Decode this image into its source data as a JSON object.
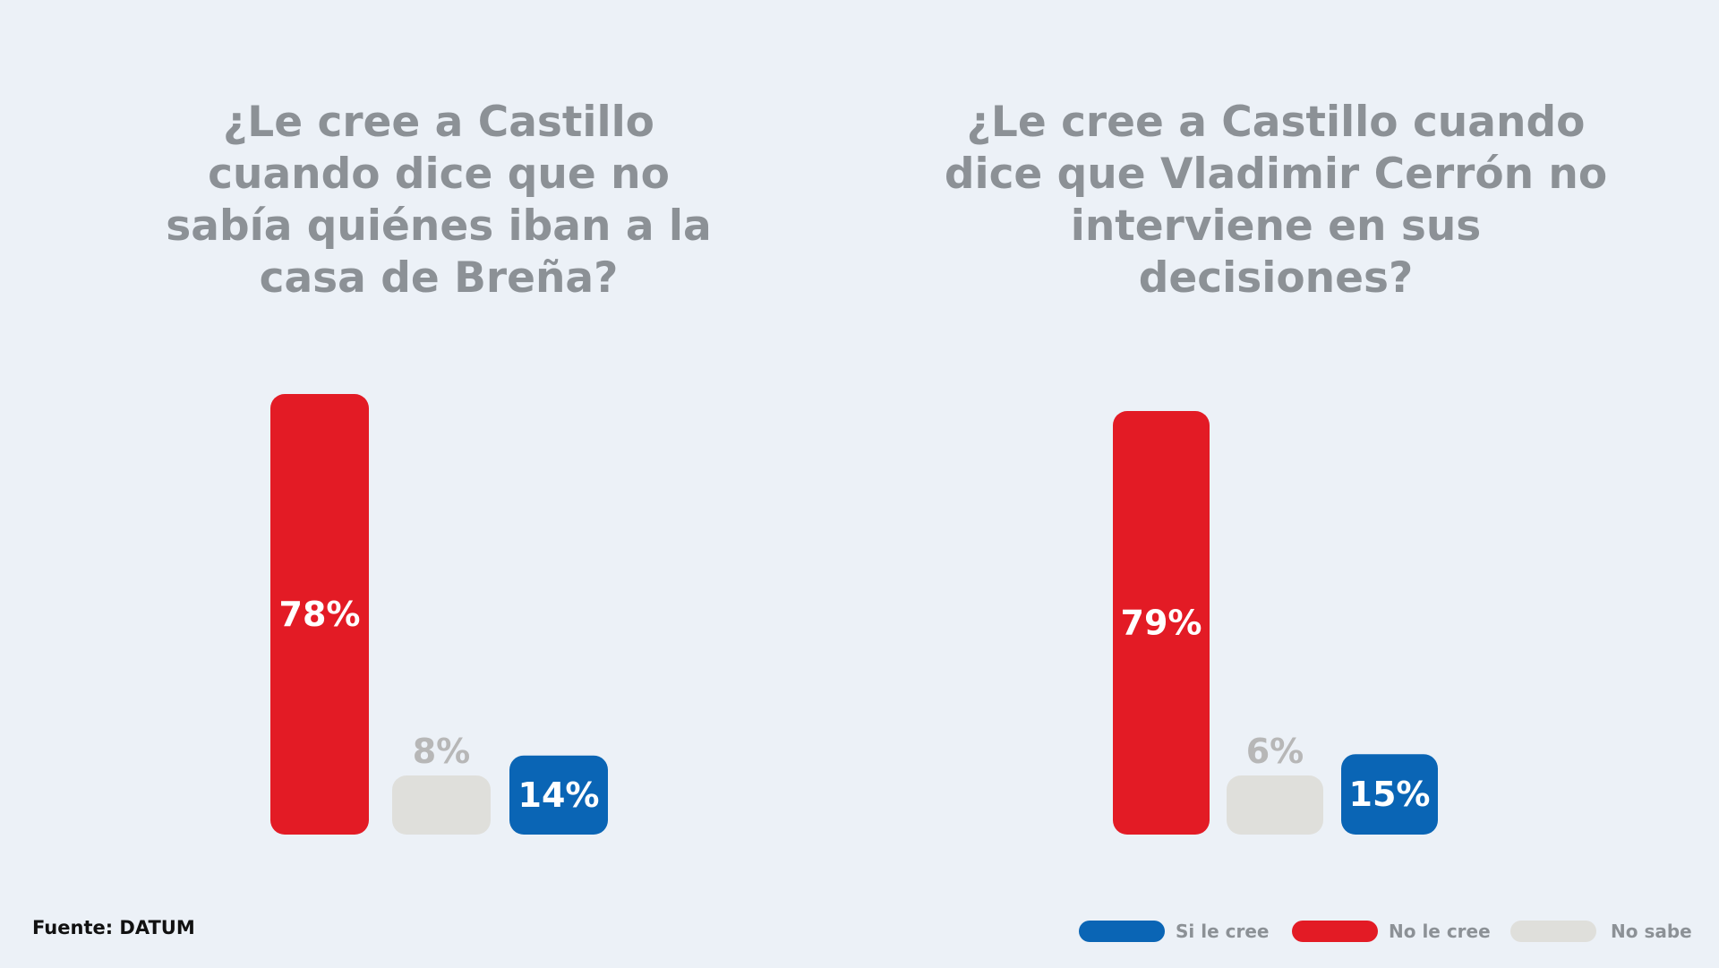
{
  "colors": {
    "si": "#0a65b5",
    "no": "#e31b25",
    "nosabe": "#dfdfdb",
    "nosabe_label": "#b7b7b7",
    "title": "#8c9196"
  },
  "source": "Fuente: DATUM",
  "legend": [
    {
      "label": "Si le cree",
      "color": "#0a65b5"
    },
    {
      "label": "No le cree",
      "color": "#e31b25"
    },
    {
      "label": "No sabe",
      "color": "#dfdfdb"
    }
  ],
  "chart_data": [
    {
      "type": "bar",
      "title": "¿Le cree a Castillo cuando dice que no sabía quiénes iban a la casa de Breña?",
      "categories": [
        "No le cree",
        "No sabe",
        "Si le cree"
      ],
      "values": [
        78,
        8,
        14
      ],
      "labels": [
        "78%",
        "8%",
        "14%"
      ],
      "colors": [
        "#e31b25",
        "#dfdfdb",
        "#0a65b5"
      ],
      "ylim": [
        0,
        78
      ]
    },
    {
      "type": "bar",
      "title": "¿Le cree a Castillo cuando dice que Vladimir Cerrón no interviene en sus decisiones?",
      "categories": [
        "No le cree",
        "No sabe",
        "Si le cree"
      ],
      "values": [
        79,
        6,
        15
      ],
      "labels": [
        "79%",
        "6%",
        "15%"
      ],
      "colors": [
        "#e31b25",
        "#dfdfdb",
        "#0a65b5"
      ],
      "ylim": [
        0,
        79
      ]
    }
  ]
}
